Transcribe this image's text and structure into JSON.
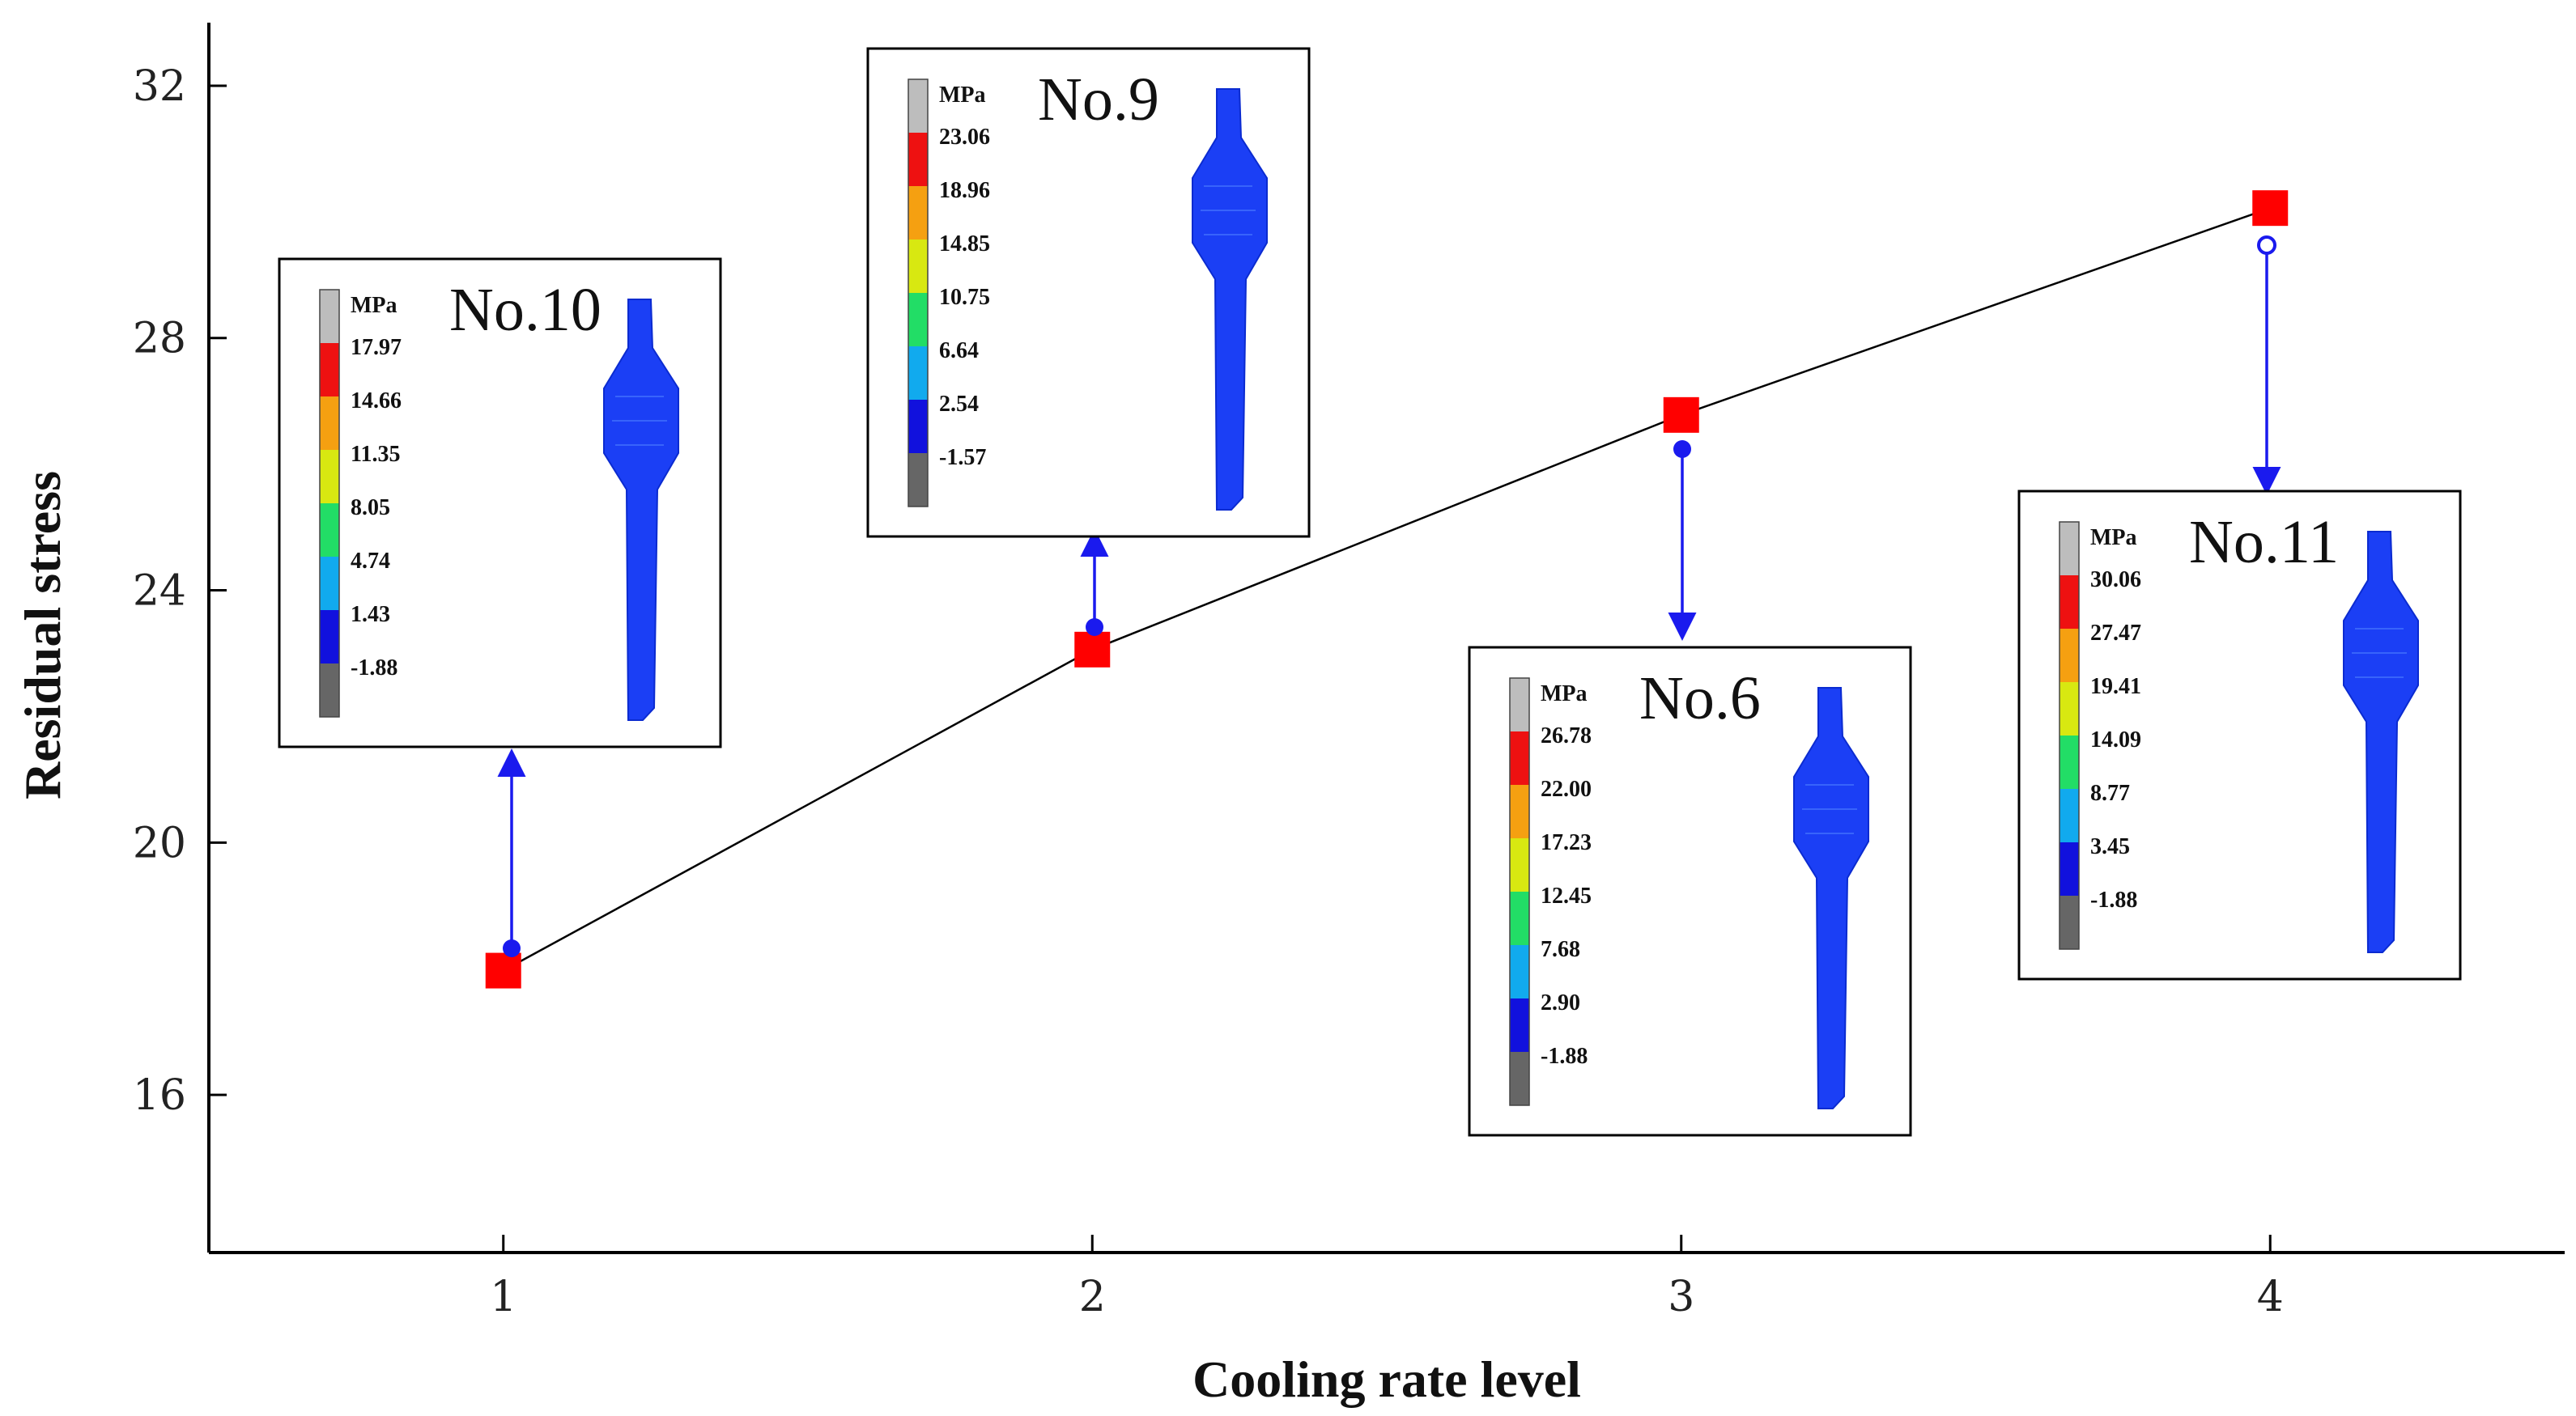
{
  "chart_data": {
    "type": "line",
    "title": "",
    "xlabel": "Cooling rate level",
    "ylabel": "Residual stress",
    "xlim": [
      0.5,
      4.5
    ],
    "ylim": [
      13.5,
      33
    ],
    "xticks": [
      1,
      2,
      3,
      4
    ],
    "yticks": [
      16,
      20,
      24,
      28,
      32
    ],
    "series": [
      {
        "name": "Residual stress",
        "marker": "square",
        "color": "#ff0000",
        "x": [
          1,
          2,
          3,
          4
        ],
        "values": [
          17.97,
          23.06,
          26.78,
          30.06
        ]
      }
    ],
    "insets": [
      {
        "id": "no10",
        "title": "No.10",
        "unit": "MPa",
        "point": 1,
        "levels": [
          "17.97",
          "14.66",
          "11.35",
          "8.05",
          "4.74",
          "1.43",
          "-1.88"
        ]
      },
      {
        "id": "no9",
        "title": "No.9",
        "unit": "MPa",
        "point": 2,
        "levels": [
          "23.06",
          "18.96",
          "14.85",
          "10.75",
          "6.64",
          "2.54",
          "-1.57"
        ]
      },
      {
        "id": "no6",
        "title": "No.6",
        "unit": "MPa",
        "point": 3,
        "levels": [
          "26.78",
          "22.00",
          "17.23",
          "12.45",
          "7.68",
          "2.90",
          "-1.88"
        ]
      },
      {
        "id": "no11",
        "title": "No.11",
        "unit": "MPa",
        "point": 4,
        "levels": [
          "30.06",
          "27.47",
          "19.41",
          "14.09",
          "8.77",
          "3.45",
          "-1.88"
        ]
      }
    ],
    "colorbar_colors": [
      "#bdbdbd",
      "#ee1111",
      "#f5a011",
      "#d8e811",
      "#22dd66",
      "#11aaee",
      "#1111dd",
      "#666666"
    ],
    "line_color": "#000000",
    "arrow_color": "#1a1aee",
    "part_color": "#1b3ff5"
  }
}
